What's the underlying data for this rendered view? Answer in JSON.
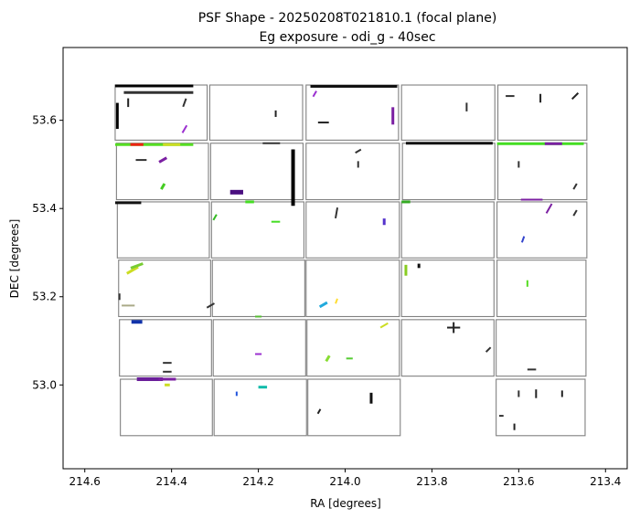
{
  "chart_data": {
    "type": "scatter",
    "title_line1": "PSF Shape - 20250208T021810.1 (focal plane)",
    "title_line2": "Eg exposure - odi_g - 40sec",
    "xlabel": "RA [degrees]",
    "ylabel": "DEC [degrees]",
    "xlim": [
      214.65,
      213.35
    ],
    "ylim": [
      52.81,
      53.765
    ],
    "x_inverted": true,
    "grid": false,
    "x_ticks": [
      {
        "value": 214.6,
        "label": "214.6"
      },
      {
        "value": 214.4,
        "label": "214.4"
      },
      {
        "value": 214.2,
        "label": "214.2"
      },
      {
        "value": 214.0,
        "label": "214.0"
      },
      {
        "value": 213.8,
        "label": "213.8"
      },
      {
        "value": 213.6,
        "label": "213.6"
      },
      {
        "value": 213.4,
        "label": "213.4"
      }
    ],
    "y_ticks": [
      {
        "value": 53.0,
        "label": "53.0"
      },
      {
        "value": 53.2,
        "label": "53.2"
      },
      {
        "value": 53.4,
        "label": "53.4"
      },
      {
        "value": 53.6,
        "label": "53.6"
      }
    ],
    "ccd_frame_color": "#808080",
    "ccd_rows": [
      {
        "dec_top": 53.68,
        "dec_bottom": 53.555,
        "cols": [
          [
            214.53,
            214.318
          ],
          [
            214.312,
            214.098
          ],
          [
            214.09,
            213.877
          ],
          [
            213.87,
            213.655
          ],
          [
            213.648,
            213.443
          ]
        ]
      },
      {
        "dec_top": 53.548,
        "dec_bottom": 53.42,
        "cols": [
          [
            214.527,
            214.315
          ],
          [
            214.31,
            214.097
          ],
          [
            214.09,
            213.875
          ],
          [
            213.868,
            213.655
          ],
          [
            213.648,
            213.443
          ]
        ]
      },
      {
        "dec_top": 53.415,
        "dec_bottom": 53.288,
        "cols": [
          [
            214.525,
            214.313
          ],
          [
            214.308,
            214.095
          ],
          [
            214.09,
            213.875
          ],
          [
            213.87,
            213.657
          ],
          [
            213.65,
            213.443
          ]
        ]
      },
      {
        "dec_top": 53.283,
        "dec_bottom": 53.155,
        "cols": [
          [
            214.522,
            214.31
          ],
          [
            214.306,
            214.093
          ],
          [
            214.09,
            213.875
          ],
          [
            213.87,
            213.657
          ],
          [
            213.65,
            213.445
          ]
        ]
      },
      {
        "dec_top": 53.148,
        "dec_bottom": 53.02,
        "cols": [
          [
            214.52,
            214.308
          ],
          [
            214.304,
            214.091
          ],
          [
            214.088,
            213.875
          ],
          [
            213.87,
            213.657
          ],
          [
            213.652,
            213.445
          ]
        ]
      },
      {
        "dec_top": 53.013,
        "dec_bottom": 52.885,
        "cols": [
          [
            214.518,
            214.306
          ],
          [
            214.302,
            214.089
          ],
          [
            214.086,
            213.873
          ],
          [
            null,
            null
          ],
          [
            213.652,
            213.447
          ]
        ]
      }
    ],
    "psf_whiskers": [
      {
        "ra": 214.44,
        "dec": 53.678,
        "len": 0.18,
        "angle": 0,
        "color": "#000000",
        "width": 3
      },
      {
        "ra": 214.43,
        "dec": 53.663,
        "len": 0.16,
        "angle": 0,
        "color": "#333333",
        "width": 3
      },
      {
        "ra": 214.525,
        "dec": 53.61,
        "len": 0.06,
        "angle": 90,
        "color": "#000000",
        "width": 3
      },
      {
        "ra": 214.5,
        "dec": 53.64,
        "len": 0.02,
        "angle": 90,
        "color": "#222222",
        "width": 2
      },
      {
        "ra": 214.37,
        "dec": 53.64,
        "len": 0.02,
        "angle": 70,
        "color": "#333333",
        "width": 2
      },
      {
        "ra": 214.37,
        "dec": 53.58,
        "len": 0.02,
        "angle": 60,
        "color": "#9b30d0",
        "width": 2
      },
      {
        "ra": 214.16,
        "dec": 53.615,
        "len": 0.015,
        "angle": 90,
        "color": "#222222",
        "width": 2
      },
      {
        "ra": 214.05,
        "dec": 53.595,
        "len": 0.025,
        "angle": 0,
        "color": "#222222",
        "width": 2
      },
      {
        "ra": 214.07,
        "dec": 53.66,
        "len": 0.015,
        "angle": 60,
        "color": "#9b30d0",
        "width": 2
      },
      {
        "ra": 213.89,
        "dec": 53.61,
        "len": 0.04,
        "angle": 90,
        "color": "#7b1fa2",
        "width": 3
      },
      {
        "ra": 213.98,
        "dec": 53.677,
        "len": 0.2,
        "angle": 0,
        "color": "#111111",
        "width": 3
      },
      {
        "ra": 213.72,
        "dec": 53.63,
        "len": 0.02,
        "angle": 90,
        "color": "#333333",
        "width": 2
      },
      {
        "ra": 213.62,
        "dec": 53.655,
        "len": 0.02,
        "angle": 0,
        "color": "#333333",
        "width": 2
      },
      {
        "ra": 213.55,
        "dec": 53.65,
        "len": 0.02,
        "angle": 90,
        "color": "#222222",
        "width": 2
      },
      {
        "ra": 213.47,
        "dec": 53.655,
        "len": 0.02,
        "angle": 45,
        "color": "#222222",
        "width": 2
      },
      {
        "ra": 214.44,
        "dec": 53.545,
        "len": 0.18,
        "angle": 0,
        "color": "#55dd22",
        "width": 3
      },
      {
        "ra": 214.48,
        "dec": 53.545,
        "len": 0.03,
        "angle": 0,
        "color": "#ee2211",
        "width": 3
      },
      {
        "ra": 214.4,
        "dec": 53.545,
        "len": 0.04,
        "angle": 0,
        "color": "#ccdd22",
        "width": 3
      },
      {
        "ra": 214.47,
        "dec": 53.51,
        "len": 0.025,
        "angle": 0,
        "color": "#333333",
        "width": 2
      },
      {
        "ra": 214.42,
        "dec": 53.51,
        "len": 0.02,
        "angle": 30,
        "color": "#7b1fa2",
        "width": 3
      },
      {
        "ra": 214.42,
        "dec": 53.45,
        "len": 0.015,
        "angle": 60,
        "color": "#44cc22",
        "width": 3
      },
      {
        "ra": 214.12,
        "dec": 53.47,
        "len": 0.13,
        "angle": 90,
        "color": "#000000",
        "width": 4
      },
      {
        "ra": 214.25,
        "dec": 53.437,
        "len": 0.03,
        "angle": 0,
        "color": "#4a0f80",
        "width": 5
      },
      {
        "ra": 214.17,
        "dec": 53.548,
        "len": 0.04,
        "angle": 0,
        "color": "#333333",
        "width": 2
      },
      {
        "ra": 213.97,
        "dec": 53.53,
        "len": 0.015,
        "angle": 30,
        "color": "#333333",
        "width": 2
      },
      {
        "ra": 213.97,
        "dec": 53.5,
        "len": 0.015,
        "angle": 90,
        "color": "#333333",
        "width": 2
      },
      {
        "ra": 213.76,
        "dec": 53.548,
        "len": 0.2,
        "angle": 0,
        "color": "#111111",
        "width": 3
      },
      {
        "ra": 213.55,
        "dec": 53.547,
        "len": 0.2,
        "angle": 0,
        "color": "#44dd22",
        "width": 3
      },
      {
        "ra": 213.52,
        "dec": 53.547,
        "len": 0.04,
        "angle": 0,
        "color": "#7b1fa2",
        "width": 3
      },
      {
        "ra": 213.6,
        "dec": 53.5,
        "len": 0.015,
        "angle": 90,
        "color": "#333333",
        "width": 2
      },
      {
        "ra": 213.47,
        "dec": 53.45,
        "len": 0.015,
        "angle": 60,
        "color": "#333333",
        "width": 2
      },
      {
        "ra": 214.5,
        "dec": 53.413,
        "len": 0.06,
        "angle": 0,
        "color": "#111111",
        "width": 3
      },
      {
        "ra": 214.3,
        "dec": 53.38,
        "len": 0.015,
        "angle": 60,
        "color": "#33bb22",
        "width": 2
      },
      {
        "ra": 214.22,
        "dec": 53.415,
        "len": 0.02,
        "angle": 0,
        "color": "#44dd22",
        "width": 3
      },
      {
        "ra": 214.16,
        "dec": 53.37,
        "len": 0.02,
        "angle": 0,
        "color": "#44dd22",
        "width": 2
      },
      {
        "ra": 214.02,
        "dec": 53.39,
        "len": 0.025,
        "angle": 80,
        "color": "#333333",
        "width": 2
      },
      {
        "ra": 213.91,
        "dec": 53.37,
        "len": 0.015,
        "angle": 90,
        "color": "#5533cc",
        "width": 3
      },
      {
        "ra": 213.86,
        "dec": 53.415,
        "len": 0.02,
        "angle": 0,
        "color": "#33aa22",
        "width": 3
      },
      {
        "ra": 213.57,
        "dec": 53.42,
        "len": 0.05,
        "angle": 0,
        "color": "#7b1fa2",
        "width": 2
      },
      {
        "ra": 213.53,
        "dec": 53.4,
        "len": 0.025,
        "angle": 60,
        "color": "#7b1fa2",
        "width": 2
      },
      {
        "ra": 213.59,
        "dec": 53.33,
        "len": 0.015,
        "angle": 70,
        "color": "#3344cc",
        "width": 2
      },
      {
        "ra": 213.47,
        "dec": 53.39,
        "len": 0.015,
        "angle": 60,
        "color": "#333333",
        "width": 2
      },
      {
        "ra": 214.49,
        "dec": 53.26,
        "len": 0.03,
        "angle": 30,
        "color": "#ccdd22",
        "width": 3
      },
      {
        "ra": 214.48,
        "dec": 53.27,
        "len": 0.03,
        "angle": 20,
        "color": "#77cc33",
        "width": 3
      },
      {
        "ra": 214.5,
        "dec": 53.18,
        "len": 0.03,
        "angle": 0,
        "color": "#aaaa88",
        "width": 2
      },
      {
        "ra": 214.52,
        "dec": 53.2,
        "len": 0.015,
        "angle": 90,
        "color": "#333333",
        "width": 2
      },
      {
        "ra": 214.31,
        "dec": 53.18,
        "len": 0.02,
        "angle": 30,
        "color": "#333333",
        "width": 2
      },
      {
        "ra": 214.2,
        "dec": 53.155,
        "len": 0.015,
        "angle": 0,
        "color": "#55bb33",
        "width": 2
      },
      {
        "ra": 214.05,
        "dec": 53.182,
        "len": 0.02,
        "angle": 30,
        "color": "#22aadd",
        "width": 3
      },
      {
        "ra": 214.02,
        "dec": 53.19,
        "len": 0.012,
        "angle": 70,
        "color": "#ffdd33",
        "width": 2
      },
      {
        "ra": 213.86,
        "dec": 53.26,
        "len": 0.025,
        "angle": 90,
        "color": "#88cc22",
        "width": 3
      },
      {
        "ra": 213.83,
        "dec": 53.27,
        "len": 0.01,
        "angle": 90,
        "color": "#111111",
        "width": 3
      },
      {
        "ra": 213.58,
        "dec": 53.23,
        "len": 0.015,
        "angle": 90,
        "color": "#55dd22",
        "width": 2
      },
      {
        "ra": 214.48,
        "dec": 53.143,
        "len": 0.025,
        "angle": 0,
        "color": "#1133aa",
        "width": 4
      },
      {
        "ra": 214.41,
        "dec": 53.05,
        "len": 0.02,
        "angle": 0,
        "color": "#333333",
        "width": 2
      },
      {
        "ra": 214.41,
        "dec": 53.03,
        "len": 0.02,
        "angle": 0,
        "color": "#333333",
        "width": 2
      },
      {
        "ra": 214.2,
        "dec": 53.07,
        "len": 0.015,
        "angle": 0,
        "color": "#9b30d0",
        "width": 2
      },
      {
        "ra": 214.04,
        "dec": 53.06,
        "len": 0.015,
        "angle": 60,
        "color": "#88dd33",
        "width": 3
      },
      {
        "ra": 213.99,
        "dec": 53.06,
        "len": 0.015,
        "angle": 0,
        "color": "#55cc33",
        "width": 2
      },
      {
        "ra": 213.91,
        "dec": 53.135,
        "len": 0.02,
        "angle": 30,
        "color": "#ccdd22",
        "width": 2
      },
      {
        "ra": 213.75,
        "dec": 53.13,
        "len": 0.03,
        "angle": 0,
        "color": "#222222",
        "width": 2
      },
      {
        "ra": 213.75,
        "dec": 53.13,
        "len": 0.025,
        "angle": 90,
        "color": "#222222",
        "width": 2
      },
      {
        "ra": 213.67,
        "dec": 53.08,
        "len": 0.015,
        "angle": 45,
        "color": "#333333",
        "width": 2
      },
      {
        "ra": 213.57,
        "dec": 53.035,
        "len": 0.02,
        "angle": 0,
        "color": "#333333",
        "width": 2
      },
      {
        "ra": 214.45,
        "dec": 53.013,
        "len": 0.06,
        "angle": 0,
        "color": "#6a1e9a",
        "width": 4
      },
      {
        "ra": 214.41,
        "dec": 53.013,
        "len": 0.04,
        "angle": 0,
        "color": "#7b1fa2",
        "width": 3
      },
      {
        "ra": 214.41,
        "dec": 53.0,
        "len": 0.012,
        "angle": 0,
        "color": "#ccdd22",
        "width": 3
      },
      {
        "ra": 214.25,
        "dec": 52.98,
        "len": 0.01,
        "angle": 90,
        "color": "#2255dd",
        "width": 2
      },
      {
        "ra": 214.19,
        "dec": 52.995,
        "len": 0.02,
        "angle": 0,
        "color": "#11bbaa",
        "width": 3
      },
      {
        "ra": 214.06,
        "dec": 52.94,
        "len": 0.012,
        "angle": 60,
        "color": "#222222",
        "width": 2
      },
      {
        "ra": 213.94,
        "dec": 52.97,
        "len": 0.025,
        "angle": 90,
        "color": "#111111",
        "width": 3
      },
      {
        "ra": 213.56,
        "dec": 52.98,
        "len": 0.02,
        "angle": 90,
        "color": "#222222",
        "width": 2
      },
      {
        "ra": 213.6,
        "dec": 52.98,
        "len": 0.015,
        "angle": 90,
        "color": "#333333",
        "width": 2
      },
      {
        "ra": 213.64,
        "dec": 52.93,
        "len": 0.01,
        "angle": 0,
        "color": "#333333",
        "width": 2
      },
      {
        "ra": 213.61,
        "dec": 52.905,
        "len": 0.015,
        "angle": 90,
        "color": "#222222",
        "width": 2
      },
      {
        "ra": 213.5,
        "dec": 52.98,
        "len": 0.015,
        "angle": 90,
        "color": "#222222",
        "width": 2
      }
    ]
  }
}
